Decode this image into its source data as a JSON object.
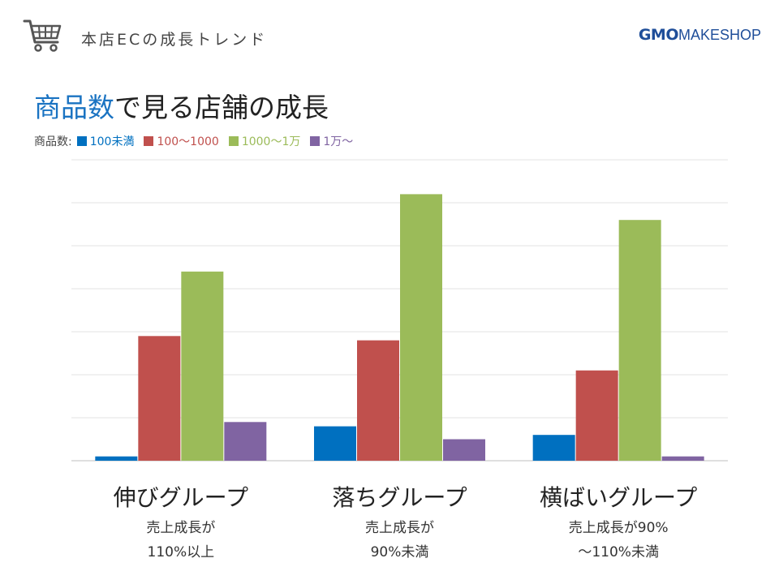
{
  "header": {
    "title": "本店ECの成長トレンド",
    "brand_gmo": "GMO",
    "brand_makeshop": "MAKESHOP"
  },
  "page_title": {
    "accent": "商品数",
    "rest": "で見る店舗の成長"
  },
  "colors": {
    "accent": "#1a73c2",
    "brand": "#1f4e99",
    "series": [
      "#0070c0",
      "#c0504d",
      "#9bbb59",
      "#8064a2"
    ]
  },
  "icons": [
    "cart-icon"
  ],
  "chart_data": {
    "type": "bar",
    "title": "",
    "legend_title": "商品数:",
    "legend_position": "top-left",
    "categories": [
      "伸びグループ",
      "落ちグループ",
      "横ばいグループ"
    ],
    "category_notes": [
      [
        "売上成長が",
        "110%以上"
      ],
      [
        "売上成長が",
        "90%未満"
      ],
      [
        "売上成長が90%",
        "～110%未満"
      ]
    ],
    "series": [
      {
        "name": "100未満",
        "values": [
          1,
          8,
          6
        ]
      },
      {
        "name": "100～1000",
        "values": [
          29,
          28,
          21
        ]
      },
      {
        "name": "1000～1万",
        "values": [
          44,
          62,
          56
        ]
      },
      {
        "name": "1万～",
        "values": [
          9,
          5,
          1
        ]
      }
    ],
    "ylim": [
      0,
      70
    ],
    "grid": true,
    "xlabel": "",
    "ylabel": ""
  }
}
